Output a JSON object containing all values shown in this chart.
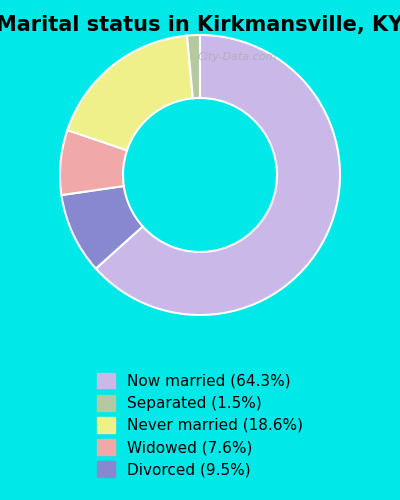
{
  "title": "Marital status in Kirkmansville, KY",
  "slices": [
    64.3,
    1.5,
    18.6,
    7.6,
    9.5
  ],
  "labels": [
    "Now married (64.3%)",
    "Separated (1.5%)",
    "Never married (18.6%)",
    "Widowed (7.6%)",
    "Divorced (9.5%)"
  ],
  "colors": [
    "#c9b8e8",
    "#b5c9a0",
    "#f0f08a",
    "#f0a8a8",
    "#8888d0"
  ],
  "background_top": "#c8f0e8",
  "background_bottom": "#00e8e8",
  "chart_bg": "#d8ede0",
  "title_fontsize": 15,
  "legend_fontsize": 11,
  "watermark": "City-Data.com"
}
